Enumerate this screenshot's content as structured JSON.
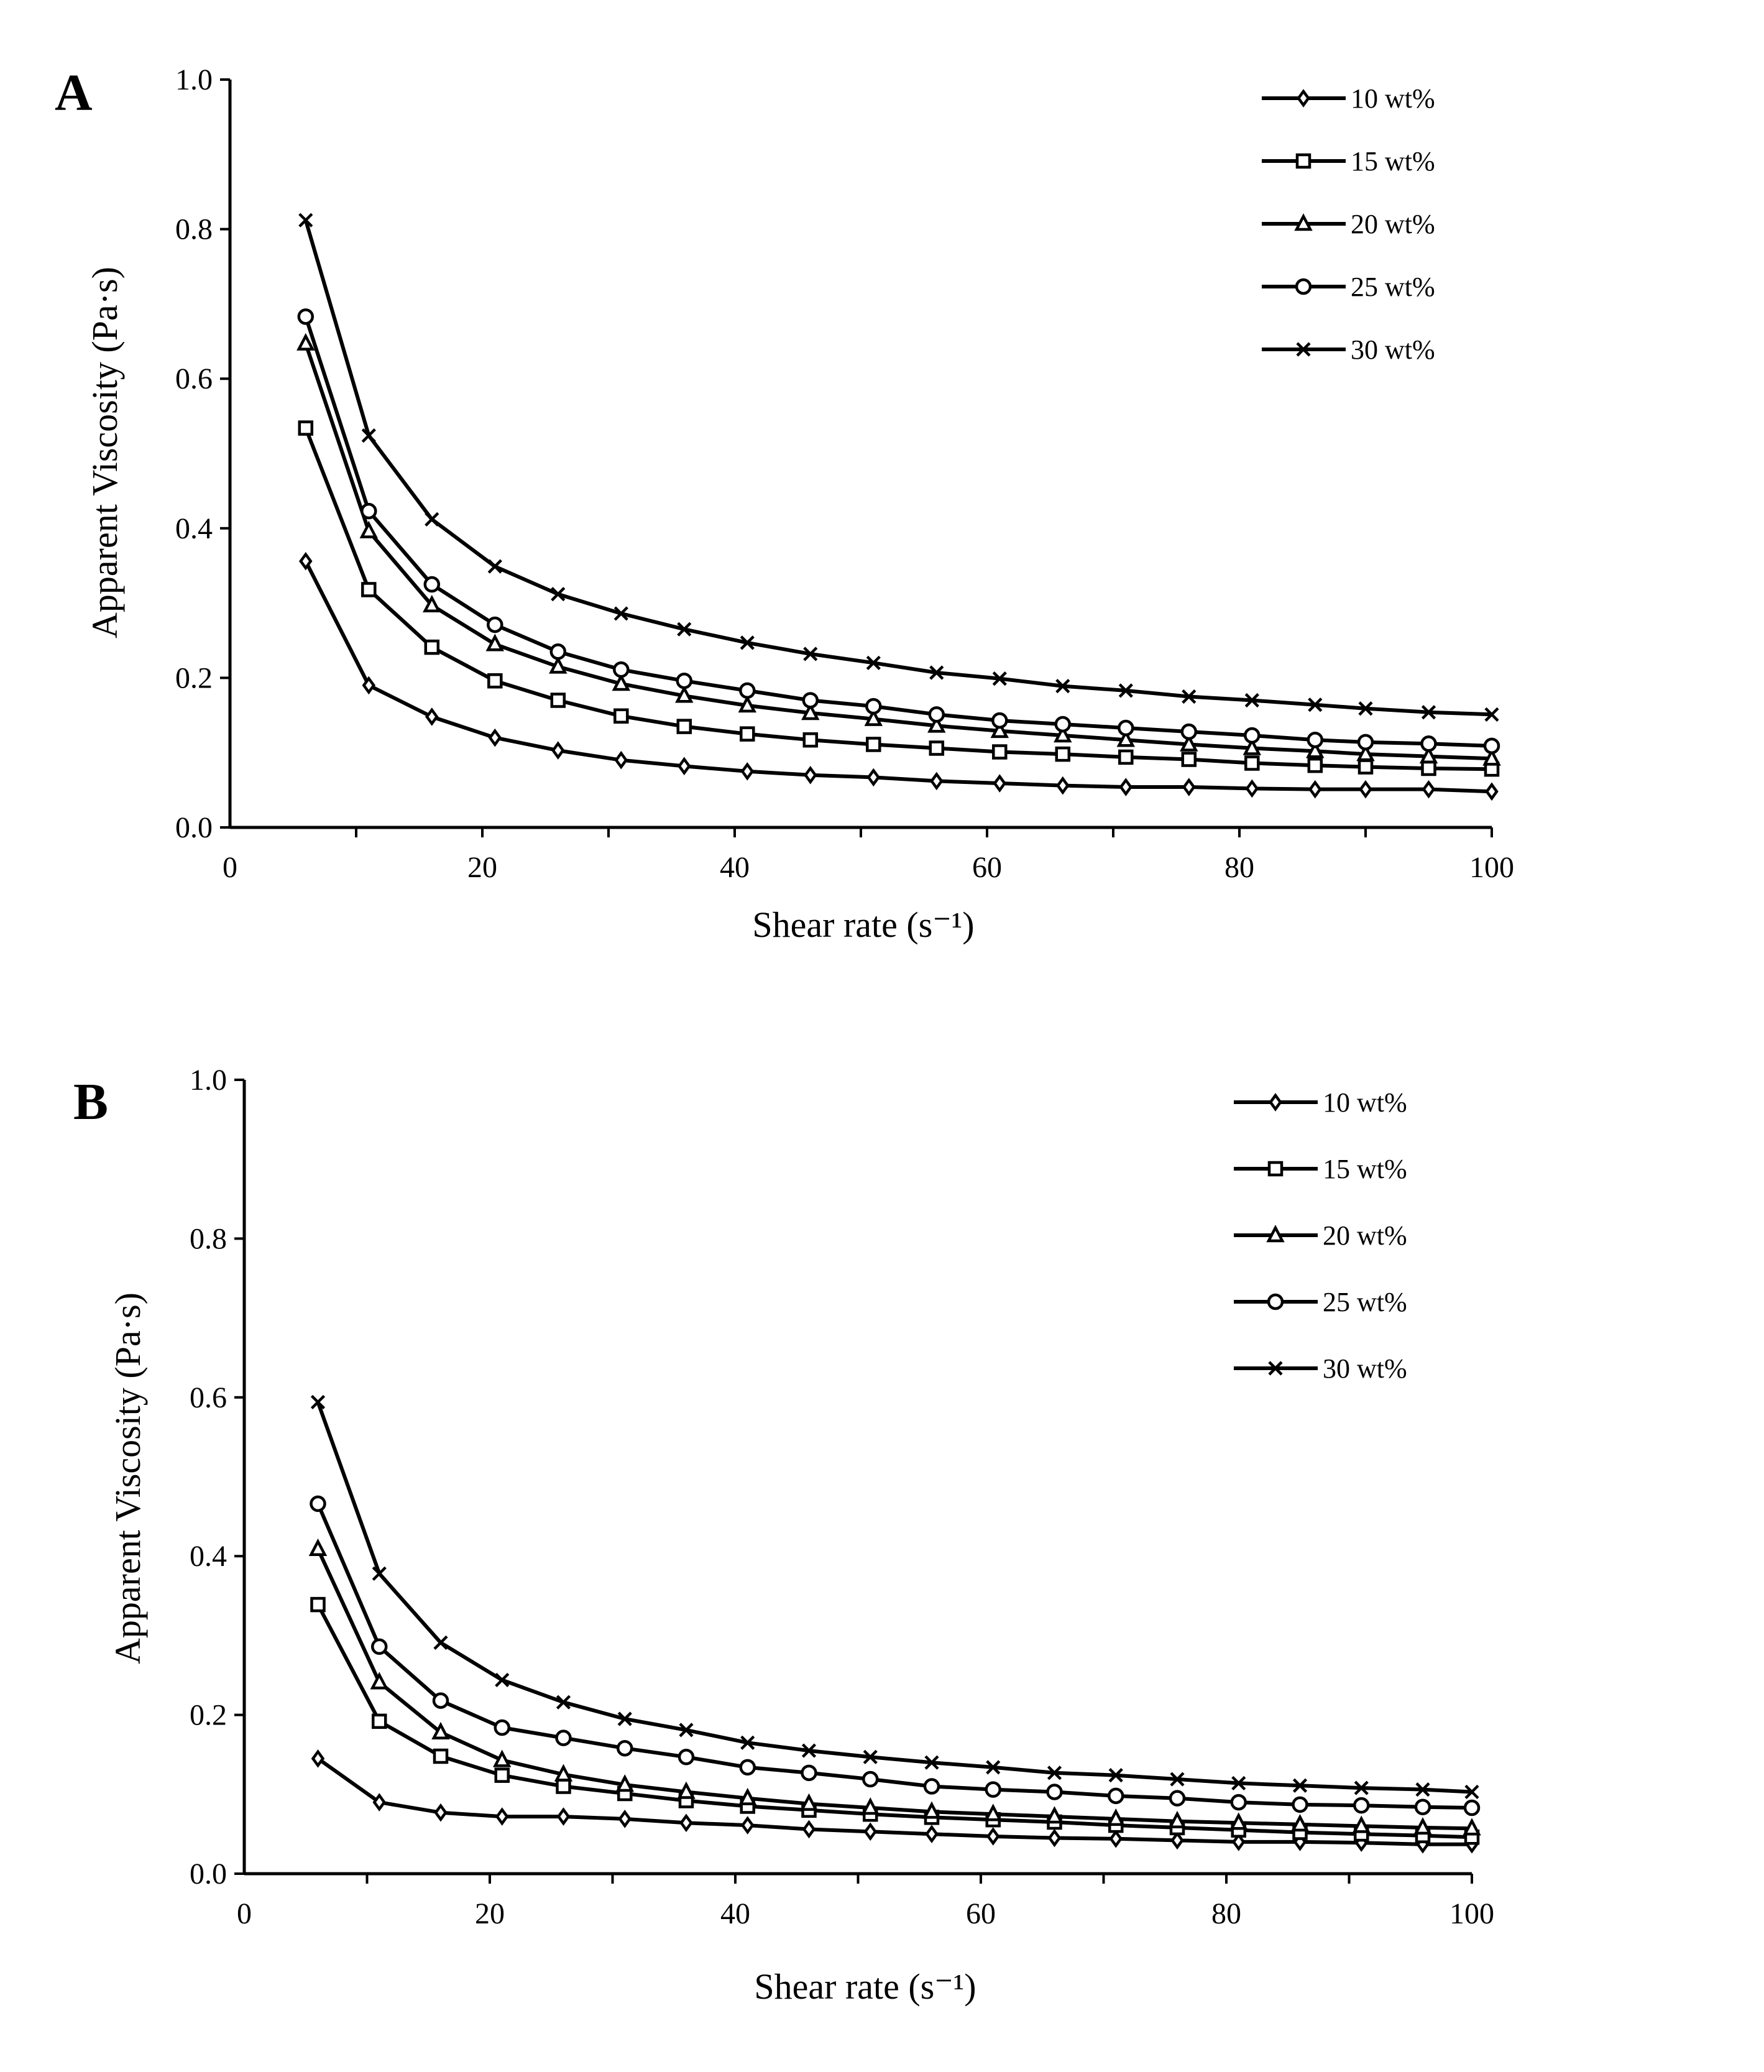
{
  "chart_data": [
    {
      "type": "line",
      "panel_label": "A",
      "xlabel": "Shear rate (s⁻¹)",
      "ylabel": "Apparent Viscosity (Pa·s)",
      "xlim": [
        0,
        100
      ],
      "ylim": [
        0,
        1.0
      ],
      "xticks": [
        "0",
        "20",
        "40",
        "60",
        "80",
        "100"
      ],
      "yticks": [
        "0.0",
        "0.2",
        "0.4",
        "0.6",
        "0.8",
        "1.0"
      ],
      "legend_position": "top-right",
      "x": [
        6,
        11,
        16,
        21,
        26,
        31,
        36,
        41,
        46,
        51,
        56,
        61,
        66,
        71,
        76,
        81,
        86,
        90,
        95,
        100
      ],
      "series": [
        {
          "name": "10 wt%",
          "marker": "diamond",
          "values": [
            0.356,
            0.19,
            0.148,
            0.12,
            0.103,
            0.09,
            0.082,
            0.075,
            0.07,
            0.067,
            0.062,
            0.059,
            0.056,
            0.054,
            0.054,
            0.052,
            0.051,
            0.051,
            0.051,
            0.048
          ]
        },
        {
          "name": "15 wt%",
          "marker": "square",
          "values": [
            0.534,
            0.318,
            0.241,
            0.196,
            0.17,
            0.149,
            0.135,
            0.125,
            0.117,
            0.111,
            0.106,
            0.101,
            0.098,
            0.094,
            0.091,
            0.086,
            0.083,
            0.081,
            0.079,
            0.078
          ]
        },
        {
          "name": "20 wt%",
          "marker": "triangle",
          "values": [
            0.647,
            0.396,
            0.297,
            0.245,
            0.215,
            0.192,
            0.176,
            0.163,
            0.153,
            0.145,
            0.136,
            0.129,
            0.123,
            0.117,
            0.111,
            0.106,
            0.102,
            0.098,
            0.095,
            0.092
          ]
        },
        {
          "name": "25 wt%",
          "marker": "circle",
          "values": [
            0.683,
            0.423,
            0.325,
            0.271,
            0.235,
            0.211,
            0.196,
            0.183,
            0.17,
            0.162,
            0.151,
            0.143,
            0.138,
            0.133,
            0.128,
            0.123,
            0.117,
            0.114,
            0.112,
            0.109
          ]
        },
        {
          "name": "30 wt%",
          "marker": "cross",
          "values": [
            0.812,
            0.524,
            0.412,
            0.349,
            0.312,
            0.286,
            0.265,
            0.247,
            0.232,
            0.22,
            0.207,
            0.199,
            0.189,
            0.183,
            0.175,
            0.17,
            0.164,
            0.159,
            0.154,
            0.151
          ]
        }
      ]
    },
    {
      "type": "line",
      "panel_label": "B",
      "xlabel": "Shear rate (s⁻¹)",
      "ylabel": "Apparent Viscosity (Pa·s)",
      "xlim": [
        0,
        100
      ],
      "ylim": [
        0,
        1.0
      ],
      "xticks": [
        "0",
        "20",
        "40",
        "60",
        "80",
        "100"
      ],
      "yticks": [
        "0.0",
        "0.2",
        "0.4",
        "0.6",
        "0.8",
        "1.0"
      ],
      "legend_position": "top-right",
      "x": [
        6,
        11,
        16,
        21,
        26,
        31,
        36,
        41,
        46,
        51,
        56,
        61,
        66,
        71,
        76,
        81,
        86,
        91,
        96,
        100
      ],
      "series": [
        {
          "name": "10 wt%",
          "marker": "diamond",
          "values": [
            0.145,
            0.09,
            0.077,
            0.072,
            0.072,
            0.069,
            0.064,
            0.061,
            0.056,
            0.053,
            0.05,
            0.047,
            0.045,
            0.044,
            0.042,
            0.04,
            0.04,
            0.039,
            0.037,
            0.037
          ]
        },
        {
          "name": "15 wt%",
          "marker": "square",
          "values": [
            0.339,
            0.192,
            0.148,
            0.124,
            0.11,
            0.101,
            0.092,
            0.085,
            0.08,
            0.075,
            0.071,
            0.068,
            0.065,
            0.061,
            0.058,
            0.055,
            0.052,
            0.05,
            0.048,
            0.046
          ]
        },
        {
          "name": "20 wt%",
          "marker": "triangle",
          "values": [
            0.409,
            0.241,
            0.178,
            0.143,
            0.125,
            0.112,
            0.103,
            0.095,
            0.088,
            0.083,
            0.078,
            0.075,
            0.072,
            0.069,
            0.066,
            0.064,
            0.062,
            0.06,
            0.058,
            0.057
          ]
        },
        {
          "name": "25 wt%",
          "marker": "circle",
          "values": [
            0.466,
            0.286,
            0.218,
            0.184,
            0.171,
            0.158,
            0.147,
            0.134,
            0.127,
            0.119,
            0.11,
            0.106,
            0.103,
            0.098,
            0.095,
            0.09,
            0.087,
            0.086,
            0.084,
            0.083
          ]
        },
        {
          "name": "30 wt%",
          "marker": "cross",
          "values": [
            0.594,
            0.378,
            0.291,
            0.244,
            0.216,
            0.195,
            0.181,
            0.165,
            0.155,
            0.147,
            0.14,
            0.134,
            0.127,
            0.124,
            0.119,
            0.114,
            0.111,
            0.108,
            0.106,
            0.103
          ]
        }
      ]
    }
  ]
}
